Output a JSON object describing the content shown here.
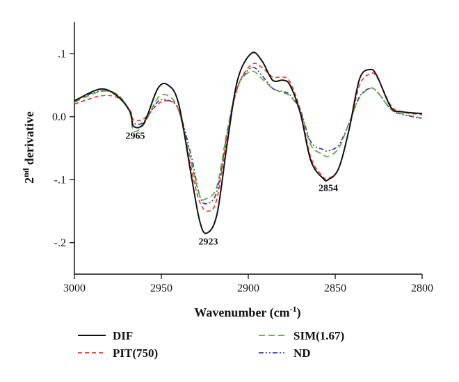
{
  "chart_data": {
    "type": "line",
    "xlabel_main": "Wavenumber (cm",
    "xlabel_sup": "-1",
    "xlabel_end": ")",
    "ylabel_pre": "2",
    "ylabel_sup": "nd",
    "ylabel_post": " derivative",
    "x_reversed": true,
    "xlim": [
      3000,
      2800
    ],
    "ylim": [
      -0.25,
      0.15
    ],
    "xticks": [
      {
        "value": 3000,
        "label": "3000"
      },
      {
        "value": 2950,
        "label": "2950"
      },
      {
        "value": 2900,
        "label": "2900"
      },
      {
        "value": 2850,
        "label": "2850"
      },
      {
        "value": 2800,
        "label": "2800"
      }
    ],
    "yticks": [
      {
        "value": 0.1,
        "label": ".1"
      },
      {
        "value": 0.0,
        "label": "0.0"
      },
      {
        "value": -0.1,
        "label": "-.1"
      },
      {
        "value": -0.2,
        "label": "-.2"
      }
    ],
    "annotations": [
      {
        "text": "2965",
        "x": 2965,
        "y": -0.035
      },
      {
        "text": "2923",
        "x": 2923,
        "y": -0.203
      },
      {
        "text": "2854",
        "x": 2854,
        "y": -0.118
      }
    ],
    "legend_position": "bottom",
    "series": [
      {
        "name": "DIF",
        "color": "#111111",
        "dash": "solid",
        "points": [
          [
            3000,
            0.025
          ],
          [
            2985,
            0.044
          ],
          [
            2975,
            0.032
          ],
          [
            2968,
            0.008
          ],
          [
            2966,
            -0.015
          ],
          [
            2960,
            -0.01
          ],
          [
            2952,
            0.045
          ],
          [
            2946,
            0.05
          ],
          [
            2940,
            0.02
          ],
          [
            2933,
            -0.09
          ],
          [
            2928,
            -0.165
          ],
          [
            2924,
            -0.185
          ],
          [
            2918,
            -0.155
          ],
          [
            2912,
            -0.04
          ],
          [
            2906,
            0.06
          ],
          [
            2898,
            0.101
          ],
          [
            2892,
            0.088
          ],
          [
            2886,
            0.058
          ],
          [
            2880,
            0.058
          ],
          [
            2876,
            0.05
          ],
          [
            2870,
            0.005
          ],
          [
            2864,
            -0.07
          ],
          [
            2857,
            -0.098
          ],
          [
            2854,
            -0.1
          ],
          [
            2848,
            -0.082
          ],
          [
            2842,
            -0.02
          ],
          [
            2836,
            0.06
          ],
          [
            2830,
            0.075
          ],
          [
            2826,
            0.065
          ],
          [
            2818,
            0.015
          ],
          [
            2812,
            0.008
          ],
          [
            2800,
            0.005
          ]
        ]
      },
      {
        "name": "PIT(750)",
        "color": "#e8392b",
        "dash": "6,4",
        "points": [
          [
            3000,
            0.02
          ],
          [
            2985,
            0.033
          ],
          [
            2975,
            0.03
          ],
          [
            2968,
            0.01
          ],
          [
            2966,
            -0.005
          ],
          [
            2960,
            -0.003
          ],
          [
            2952,
            0.02
          ],
          [
            2946,
            0.025
          ],
          [
            2940,
            0.01
          ],
          [
            2933,
            -0.08
          ],
          [
            2928,
            -0.135
          ],
          [
            2923,
            -0.15
          ],
          [
            2918,
            -0.13
          ],
          [
            2912,
            -0.03
          ],
          [
            2906,
            0.048
          ],
          [
            2898,
            0.083
          ],
          [
            2892,
            0.078
          ],
          [
            2886,
            0.063
          ],
          [
            2880,
            0.063
          ],
          [
            2876,
            0.055
          ],
          [
            2870,
            0.01
          ],
          [
            2864,
            -0.065
          ],
          [
            2857,
            -0.095
          ],
          [
            2854,
            -0.098
          ],
          [
            2848,
            -0.082
          ],
          [
            2842,
            -0.02
          ],
          [
            2836,
            0.05
          ],
          [
            2830,
            0.068
          ],
          [
            2826,
            0.063
          ],
          [
            2818,
            0.018
          ],
          [
            2812,
            0.008
          ],
          [
            2800,
            0.003
          ]
        ]
      },
      {
        "name": "SIM(1.67)",
        "color": "#5aa63a",
        "dash": "9,5",
        "points": [
          [
            3000,
            0.023
          ],
          [
            2985,
            0.04
          ],
          [
            2975,
            0.035
          ],
          [
            2968,
            0.005
          ],
          [
            2966,
            -0.023
          ],
          [
            2960,
            -0.012
          ],
          [
            2952,
            0.03
          ],
          [
            2946,
            0.033
          ],
          [
            2940,
            0.01
          ],
          [
            2933,
            -0.07
          ],
          [
            2928,
            -0.125
          ],
          [
            2924,
            -0.13
          ],
          [
            2918,
            -0.11
          ],
          [
            2912,
            -0.02
          ],
          [
            2906,
            0.05
          ],
          [
            2898,
            0.072
          ],
          [
            2892,
            0.06
          ],
          [
            2886,
            0.045
          ],
          [
            2880,
            0.038
          ],
          [
            2876,
            0.033
          ],
          [
            2870,
            0.008
          ],
          [
            2864,
            -0.045
          ],
          [
            2857,
            -0.06
          ],
          [
            2854,
            -0.063
          ],
          [
            2848,
            -0.05
          ],
          [
            2842,
            -0.01
          ],
          [
            2836,
            0.03
          ],
          [
            2830,
            0.045
          ],
          [
            2826,
            0.04
          ],
          [
            2818,
            0.012
          ],
          [
            2812,
            0.005
          ],
          [
            2800,
            -0.002
          ]
        ]
      },
      {
        "name": "ND",
        "color": "#3a3aa8",
        "dash": "7,3,2,3,2,3",
        "points": [
          [
            3000,
            0.026
          ],
          [
            2985,
            0.041
          ],
          [
            2975,
            0.034
          ],
          [
            2968,
            0.008
          ],
          [
            2966,
            -0.01
          ],
          [
            2960,
            -0.008
          ],
          [
            2952,
            0.024
          ],
          [
            2946,
            0.026
          ],
          [
            2940,
            0.01
          ],
          [
            2933,
            -0.06
          ],
          [
            2928,
            -0.125
          ],
          [
            2924,
            -0.138
          ],
          [
            2918,
            -0.118
          ],
          [
            2912,
            -0.025
          ],
          [
            2906,
            0.048
          ],
          [
            2898,
            0.078
          ],
          [
            2892,
            0.065
          ],
          [
            2886,
            0.045
          ],
          [
            2880,
            0.04
          ],
          [
            2876,
            0.035
          ],
          [
            2870,
            0.01
          ],
          [
            2864,
            -0.04
          ],
          [
            2857,
            -0.052
          ],
          [
            2854,
            -0.054
          ],
          [
            2848,
            -0.045
          ],
          [
            2842,
            -0.01
          ],
          [
            2836,
            0.032
          ],
          [
            2830,
            0.045
          ],
          [
            2826,
            0.04
          ],
          [
            2818,
            0.012
          ],
          [
            2812,
            0.004
          ],
          [
            2800,
            -0.003
          ]
        ]
      }
    ]
  }
}
